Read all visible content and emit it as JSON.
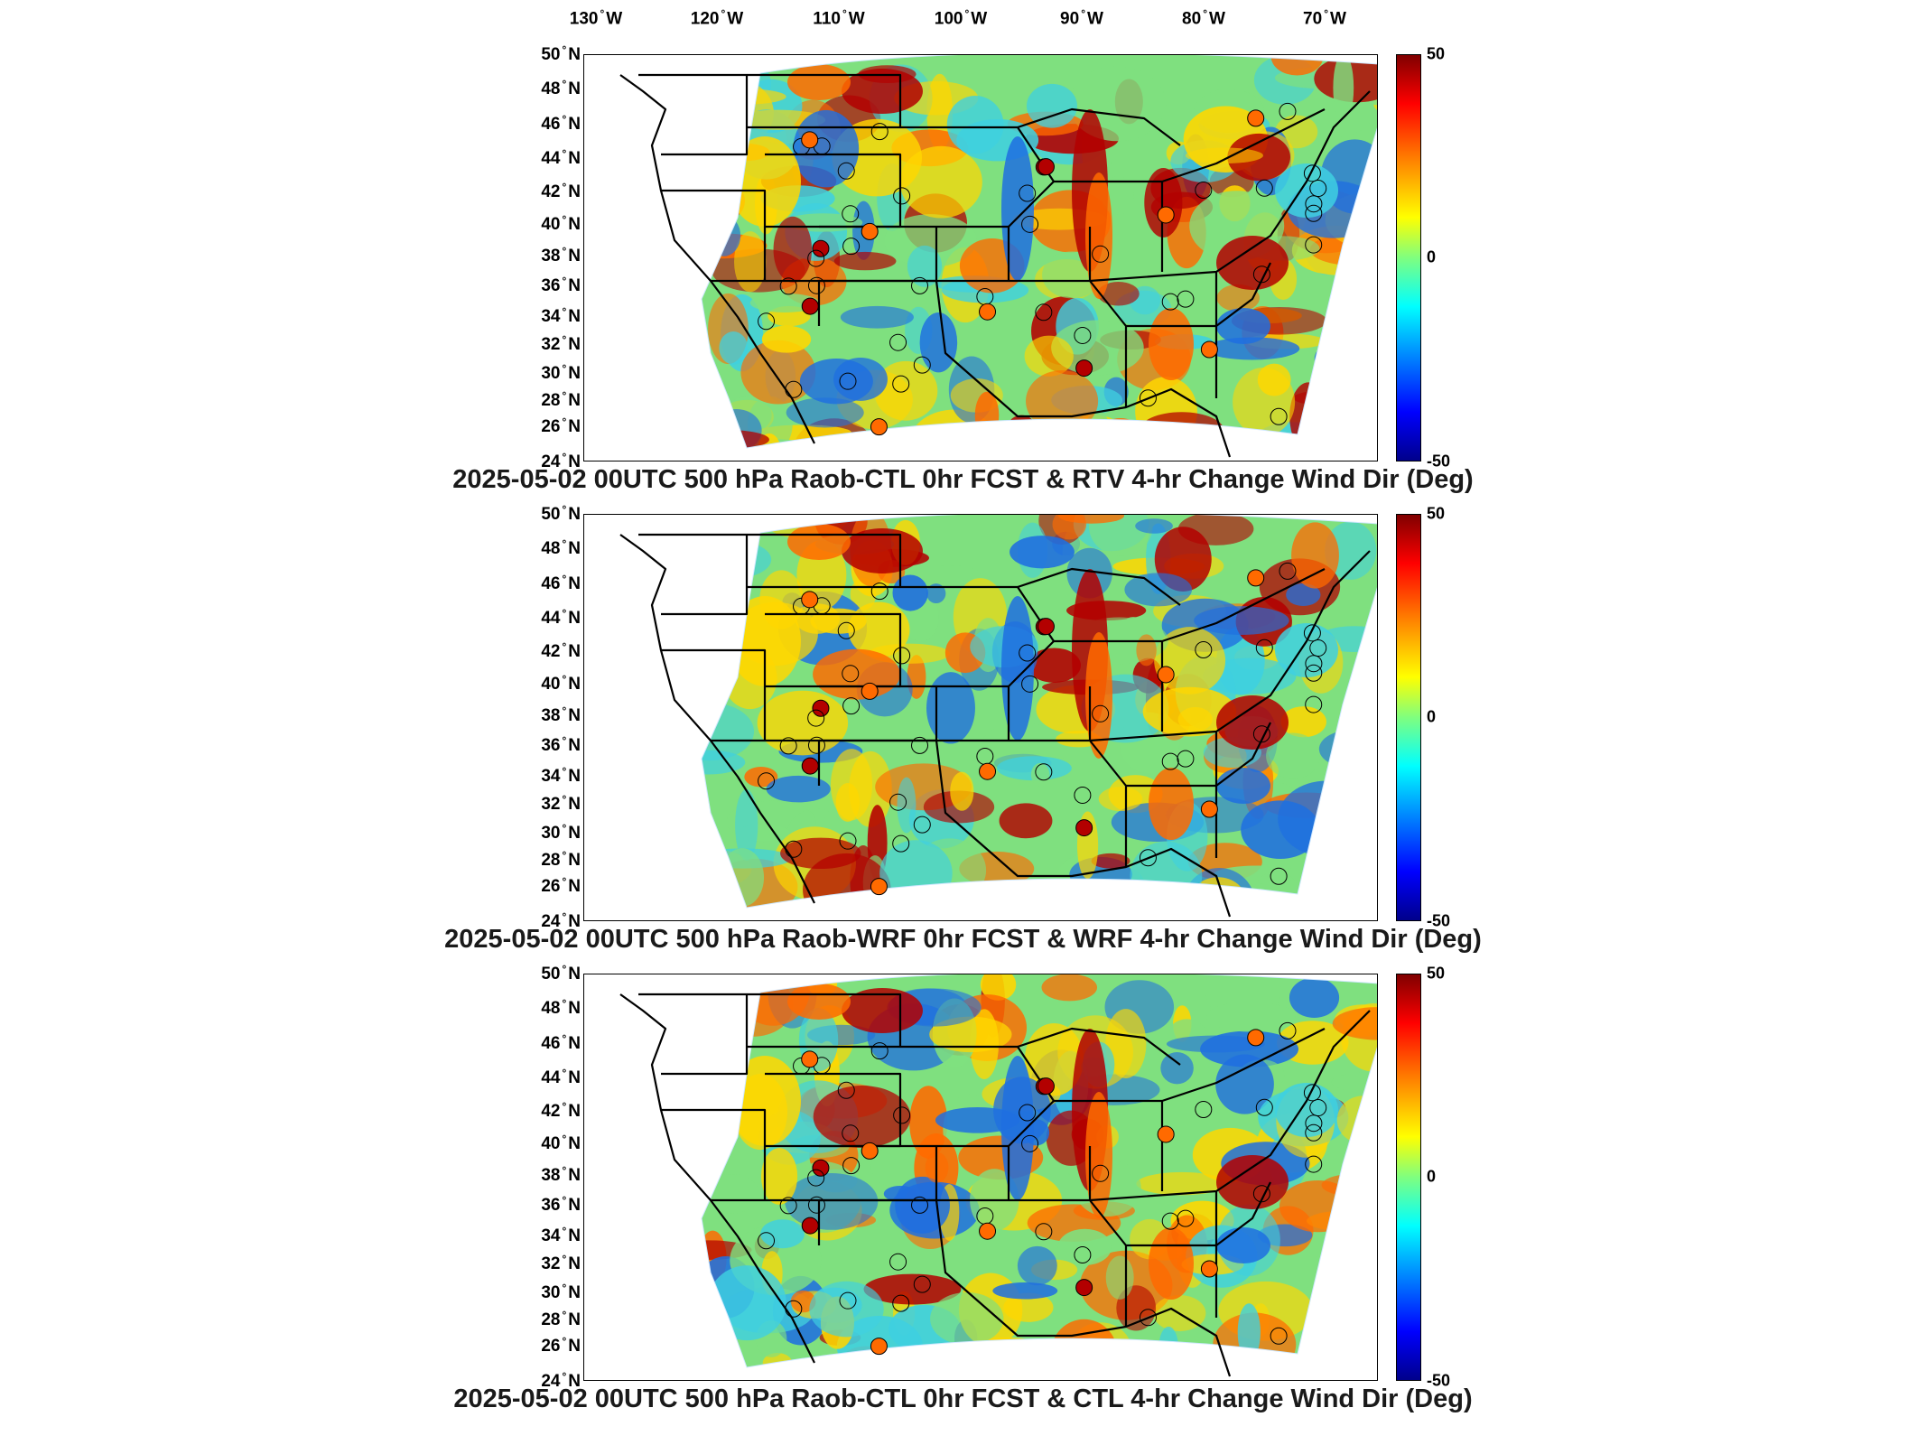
{
  "lon_labels": [
    "130",
    "120",
    "110",
    "100",
    "90",
    "80",
    "70"
  ],
  "lon_suffix": "W",
  "lat_labels": [
    "50",
    "48",
    "46",
    "44",
    "42",
    "40",
    "38",
    "36",
    "34",
    "32",
    "30",
    "28",
    "26",
    "24"
  ],
  "lat_suffix": "N",
  "degree_symbol": "°",
  "colorbar": {
    "max_label": "50",
    "mid_label": "0",
    "min_label": "-50",
    "range": [
      -50,
      50
    ]
  },
  "colors": {
    "strong_positive": "#b30000",
    "positive": "#ff6a00",
    "weak_positive": "#ffd700",
    "neutral": "#7fe07f",
    "weak_negative": "#3fd0e0",
    "negative": "#1f6fe0",
    "strong_negative": "#0000a0"
  },
  "panels": [
    {
      "title": "2025-05-02 00UTC 500 hPa Raob-CTL 0hr FCST & RTV 4-hr Change Wind Dir (Deg)"
    },
    {
      "title": "2025-05-02 00UTC 500 hPa Raob-WRF 0hr FCST & WRF 4-hr Change Wind Dir (Deg)"
    },
    {
      "title": "2025-05-02 00UTC 500 hPa Raob-CTL 0hr FCST & CTL 4-hr Change Wind Dir (Deg)"
    }
  ]
}
